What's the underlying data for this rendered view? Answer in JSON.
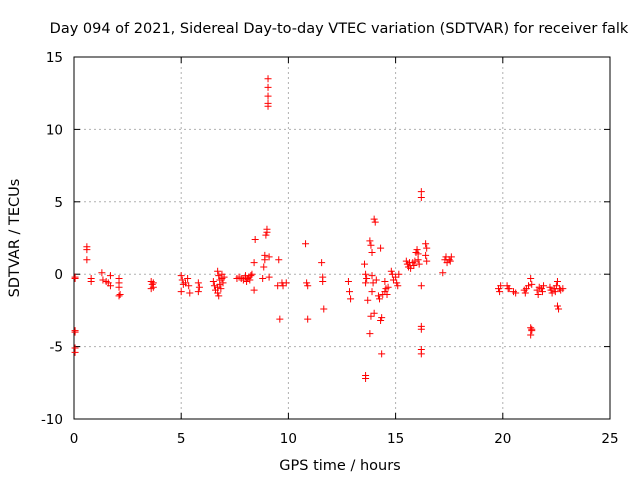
{
  "chart_data": {
    "type": "scatter",
    "title": "Day 094 of 2021, Sidereal Day-to-day VTEC variation (SDTVAR) for receiver falk",
    "xlabel": "GPS time / hours",
    "ylabel": "SDTVAR / TECUs",
    "xlim": [
      0,
      25
    ],
    "ylim": [
      -10,
      15
    ],
    "xticks": [
      0,
      5,
      10,
      15,
      20,
      25
    ],
    "yticks": [
      -10,
      -5,
      0,
      5,
      10,
      15
    ],
    "grid": true,
    "marker": "+",
    "colors": {
      "series": "#ff0000",
      "grid": "#b0b0b0",
      "axis": "#000000"
    },
    "series": [
      {
        "name": "SDTVAR",
        "points": [
          [
            0.05,
            -0.2
          ],
          [
            0.05,
            -0.3
          ],
          [
            0.05,
            -3.9
          ],
          [
            0.05,
            -4.0
          ],
          [
            0.05,
            -5.1
          ],
          [
            0.05,
            -5.4
          ],
          [
            0.6,
            1.7
          ],
          [
            0.6,
            1.9
          ],
          [
            0.6,
            1.0
          ],
          [
            0.8,
            -0.3
          ],
          [
            0.8,
            -0.5
          ],
          [
            1.3,
            0.1
          ],
          [
            1.35,
            -0.4
          ],
          [
            1.5,
            -0.5
          ],
          [
            1.6,
            -0.6
          ],
          [
            1.7,
            -0.8
          ],
          [
            1.7,
            -0.1
          ],
          [
            2.1,
            -0.3
          ],
          [
            2.1,
            -0.6
          ],
          [
            2.1,
            -0.9
          ],
          [
            2.15,
            -1.4
          ],
          [
            2.1,
            -1.5
          ],
          [
            3.6,
            -0.5
          ],
          [
            3.65,
            -0.7
          ],
          [
            3.7,
            -0.9
          ],
          [
            3.6,
            -1.0
          ],
          [
            3.7,
            -0.6
          ],
          [
            5.0,
            -0.1
          ],
          [
            5.05,
            -0.4
          ],
          [
            5.1,
            -0.7
          ],
          [
            5.0,
            -1.2
          ],
          [
            5.2,
            -0.6
          ],
          [
            5.3,
            -0.3
          ],
          [
            5.4,
            -1.3
          ],
          [
            5.35,
            -0.8
          ],
          [
            5.8,
            -0.6
          ],
          [
            5.85,
            -0.9
          ],
          [
            5.8,
            -1.2
          ],
          [
            6.5,
            -0.5
          ],
          [
            6.55,
            -0.8
          ],
          [
            6.6,
            -1.1
          ],
          [
            6.7,
            -1.3
          ],
          [
            6.7,
            0.2
          ],
          [
            6.75,
            -0.1
          ],
          [
            6.8,
            -0.4
          ],
          [
            6.8,
            -0.7
          ],
          [
            6.85,
            -1.0
          ],
          [
            6.9,
            0.0
          ],
          [
            6.9,
            -0.3
          ],
          [
            6.95,
            -0.6
          ],
          [
            7.0,
            -0.2
          ],
          [
            6.7,
            -0.9
          ],
          [
            6.75,
            -1.5
          ],
          [
            7.6,
            -0.3
          ],
          [
            7.7,
            -0.2
          ],
          [
            7.8,
            -0.3
          ],
          [
            7.9,
            -0.4
          ],
          [
            8.0,
            -0.2
          ],
          [
            8.05,
            -0.5
          ],
          [
            8.1,
            -0.3
          ],
          [
            8.2,
            -0.4
          ],
          [
            8.25,
            -0.1
          ],
          [
            8.3,
            0.0
          ],
          [
            8.0,
            -0.1
          ],
          [
            8.15,
            -0.2
          ],
          [
            8.4,
            -1.1
          ],
          [
            8.4,
            0.8
          ],
          [
            8.45,
            2.4
          ],
          [
            8.8,
            -0.3
          ],
          [
            8.85,
            0.5
          ],
          [
            8.9,
            1.0
          ],
          [
            8.9,
            1.3
          ],
          [
            8.95,
            2.7
          ],
          [
            9.0,
            2.9
          ],
          [
            9.0,
            3.1
          ],
          [
            9.05,
            11.6
          ],
          [
            9.05,
            11.8
          ],
          [
            9.05,
            12.3
          ],
          [
            9.05,
            12.9
          ],
          [
            9.05,
            13.5
          ],
          [
            9.1,
            -0.2
          ],
          [
            9.1,
            1.2
          ],
          [
            9.5,
            -0.8
          ],
          [
            9.55,
            1.0
          ],
          [
            9.6,
            -3.1
          ],
          [
            9.7,
            -0.6
          ],
          [
            9.75,
            -0.8
          ],
          [
            9.9,
            -0.6
          ],
          [
            10.8,
            2.1
          ],
          [
            10.85,
            -0.6
          ],
          [
            10.9,
            -0.8
          ],
          [
            10.9,
            -3.1
          ],
          [
            11.55,
            0.8
          ],
          [
            11.6,
            -0.2
          ],
          [
            11.6,
            -0.5
          ],
          [
            11.65,
            -2.4
          ],
          [
            12.8,
            -0.5
          ],
          [
            12.85,
            -1.2
          ],
          [
            12.9,
            -1.7
          ],
          [
            13.55,
            0.7
          ],
          [
            13.6,
            0.0
          ],
          [
            13.65,
            -0.3
          ],
          [
            13.6,
            -0.6
          ],
          [
            13.7,
            -1.8
          ],
          [
            13.6,
            -7.0
          ],
          [
            13.6,
            -7.2
          ],
          [
            13.8,
            2.3
          ],
          [
            13.85,
            2.0
          ],
          [
            13.9,
            1.5
          ],
          [
            13.9,
            -0.1
          ],
          [
            13.95,
            -0.6
          ],
          [
            13.9,
            -1.2
          ],
          [
            13.85,
            -2.9
          ],
          [
            13.8,
            -4.1
          ],
          [
            14.0,
            -2.7
          ],
          [
            14.0,
            3.8
          ],
          [
            14.05,
            3.6
          ],
          [
            14.1,
            -0.4
          ],
          [
            14.2,
            -1.5
          ],
          [
            14.25,
            -1.7
          ],
          [
            14.3,
            1.8
          ],
          [
            14.35,
            -3.0
          ],
          [
            14.35,
            -5.5
          ],
          [
            14.3,
            -3.2
          ],
          [
            14.4,
            -1.4
          ],
          [
            14.5,
            -1.2
          ],
          [
            14.5,
            -0.5
          ],
          [
            14.55,
            -1.0
          ],
          [
            14.6,
            -1.4
          ],
          [
            14.65,
            -0.9
          ],
          [
            14.8,
            0.2
          ],
          [
            14.85,
            0.0
          ],
          [
            14.9,
            -0.4
          ],
          [
            15.0,
            -0.2
          ],
          [
            15.05,
            -0.6
          ],
          [
            15.1,
            -0.8
          ],
          [
            15.15,
            0.0
          ],
          [
            15.5,
            0.9
          ],
          [
            15.55,
            0.7
          ],
          [
            15.6,
            0.5
          ],
          [
            15.65,
            0.8
          ],
          [
            15.7,
            0.4
          ],
          [
            15.8,
            0.8
          ],
          [
            15.85,
            0.6
          ],
          [
            15.9,
            0.9
          ],
          [
            15.95,
            1.5
          ],
          [
            16.0,
            1.7
          ],
          [
            16.05,
            1.4
          ],
          [
            16.1,
            0.7
          ],
          [
            16.05,
            1.0
          ],
          [
            16.2,
            5.7
          ],
          [
            16.2,
            5.3
          ],
          [
            16.2,
            -3.6
          ],
          [
            16.2,
            -3.8
          ],
          [
            16.2,
            -5.2
          ],
          [
            16.2,
            -5.5
          ],
          [
            16.2,
            -0.8
          ],
          [
            16.4,
            2.1
          ],
          [
            16.45,
            1.8
          ],
          [
            16.4,
            1.3
          ],
          [
            16.45,
            0.9
          ],
          [
            17.2,
            0.1
          ],
          [
            17.3,
            1.0
          ],
          [
            17.35,
            1.2
          ],
          [
            17.4,
            0.8
          ],
          [
            17.5,
            1.0
          ],
          [
            17.55,
            0.9
          ],
          [
            17.6,
            1.2
          ],
          [
            19.8,
            -1.0
          ],
          [
            19.85,
            -1.2
          ],
          [
            19.9,
            -0.8
          ],
          [
            20.2,
            -0.8
          ],
          [
            20.25,
            -1.0
          ],
          [
            20.3,
            -1.0
          ],
          [
            20.5,
            -1.2
          ],
          [
            20.6,
            -1.3
          ],
          [
            21.0,
            -1.1
          ],
          [
            21.05,
            -1.3
          ],
          [
            21.1,
            -1.0
          ],
          [
            21.2,
            -0.8
          ],
          [
            21.3,
            -0.3
          ],
          [
            21.35,
            -0.7
          ],
          [
            21.3,
            -3.7
          ],
          [
            21.35,
            -3.9
          ],
          [
            21.3,
            -4.2
          ],
          [
            21.35,
            -3.8
          ],
          [
            21.6,
            -1.1
          ],
          [
            21.65,
            -1.4
          ],
          [
            21.7,
            -0.9
          ],
          [
            21.8,
            -1.0
          ],
          [
            21.85,
            -1.2
          ],
          [
            21.9,
            -0.8
          ],
          [
            22.2,
            -0.9
          ],
          [
            22.25,
            -1.1
          ],
          [
            22.3,
            -1.3
          ],
          [
            22.4,
            -1.0
          ],
          [
            22.45,
            -1.2
          ],
          [
            22.5,
            -0.8
          ],
          [
            22.55,
            -0.5
          ],
          [
            22.55,
            -2.2
          ],
          [
            22.6,
            -2.4
          ],
          [
            22.65,
            -1.0
          ],
          [
            22.7,
            -1.1
          ],
          [
            22.8,
            -1.0
          ]
        ]
      }
    ]
  }
}
